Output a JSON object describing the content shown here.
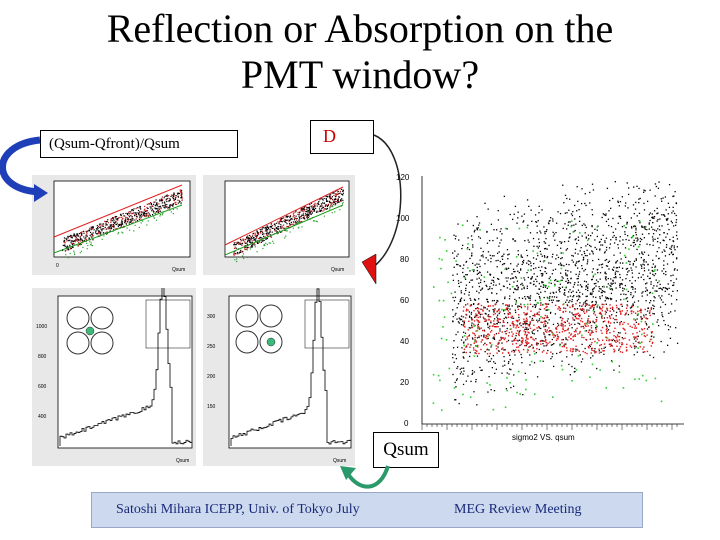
{
  "slide": {
    "title_line1": "Reflection or Absorption on the",
    "title_line2": "PMT window?"
  },
  "labels": {
    "ratio_box": "(Qsum-Qfront)/Qsum",
    "d_box": "D",
    "qsum_box": "Qsum"
  },
  "main_plot": {
    "y_ticks": [
      "120",
      "100",
      "80",
      "60",
      "40",
      "20",
      "0"
    ],
    "x_caption": "sigmo2 VS. qsum"
  },
  "footer": {
    "left_text": "Satoshi Mihara ICEPP, Univ. of Tokyo July",
    "right_text": "MEG Review Meeting"
  },
  "colors": {
    "arrow_blue": "#1f3fb8",
    "arrow_red": "#e01010",
    "arrow_green": "#2a9a6a",
    "footer_bg": "#ccd9ee",
    "footer_text": "#1a2a7a"
  }
}
